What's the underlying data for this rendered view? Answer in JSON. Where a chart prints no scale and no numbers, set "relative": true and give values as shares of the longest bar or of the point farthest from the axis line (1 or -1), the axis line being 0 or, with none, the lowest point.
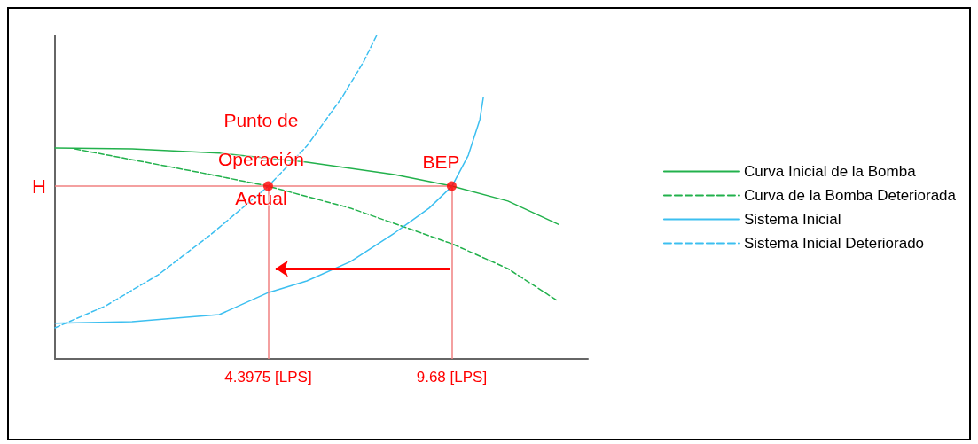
{
  "chart_data": {
    "type": "line",
    "relative": true,
    "marker": "none",
    "legend": "right",
    "grid": false,
    "xlim": [
      -1.74,
      13.6
    ],
    "xticks": [
      {
        "value": 4.3975,
        "label": "4.3975 [LPS]"
      },
      {
        "value": 9.68,
        "label": "9.68 [LPS]"
      }
    ],
    "series": [
      {
        "name": "Curva Inicial de la Bomba",
        "color": "#22b14c",
        "line_style": "solid",
        "x": [
          -1.74,
          0.48,
          2.99,
          5.51,
          8.03,
          9.69,
          11.3,
          12.75
        ],
        "values": [
          0.652,
          0.649,
          0.636,
          0.608,
          0.57,
          0.534,
          0.488,
          0.416
        ]
      },
      {
        "name": "Curva de la Bomba Deteriorada",
        "color": "#22b14c",
        "line_style": "dashed",
        "x": [
          -1.16,
          0.48,
          2.49,
          4.4,
          6.77,
          9.69,
          11.3,
          12.75
        ],
        "values": [
          0.649,
          0.616,
          0.575,
          0.534,
          0.466,
          0.356,
          0.279,
          0.178
        ]
      },
      {
        "name": "Sistema Inicial",
        "color": "#3cbff0",
        "line_style": "solid",
        "x": [
          -1.74,
          0.48,
          2.99,
          4.4,
          5.51,
          6.77,
          8.03,
          9.03,
          9.69,
          10.16,
          10.49,
          10.59
        ],
        "values": [
          0.11,
          0.115,
          0.137,
          0.205,
          0.241,
          0.301,
          0.389,
          0.466,
          0.534,
          0.63,
          0.74,
          0.808
        ]
      },
      {
        "name": "Sistema Inicial Deteriorado",
        "color": "#3cbff0",
        "line_style": "dashed",
        "x": [
          -1.74,
          -0.28,
          1.23,
          2.74,
          4.4,
          5.51,
          6.52,
          7.14,
          7.52
        ],
        "values": [
          0.096,
          0.164,
          0.26,
          0.384,
          0.534,
          0.658,
          0.808,
          0.918,
          1.0
        ]
      },
      {
        "type": "scatter",
        "marker": "circle",
        "color": "#ff0000",
        "x": [
          4.3975,
          9.68
        ],
        "values": [
          0.534,
          0.534
        ]
      }
    ],
    "ref_lines": [
      {
        "axis": "y",
        "value": 0.534,
        "label": "H",
        "color": "#f08080"
      },
      {
        "axis": "x",
        "value": 4.3975,
        "color": "#f08080"
      },
      {
        "axis": "x",
        "value": 9.68,
        "color": "#f08080"
      }
    ],
    "annotations": [
      {
        "text": "Punto de Operación Actual",
        "x": 4.3975,
        "y": 0.534
      },
      {
        "text": "BEP",
        "x": 9.68,
        "y": 0.534
      }
    ]
  }
}
